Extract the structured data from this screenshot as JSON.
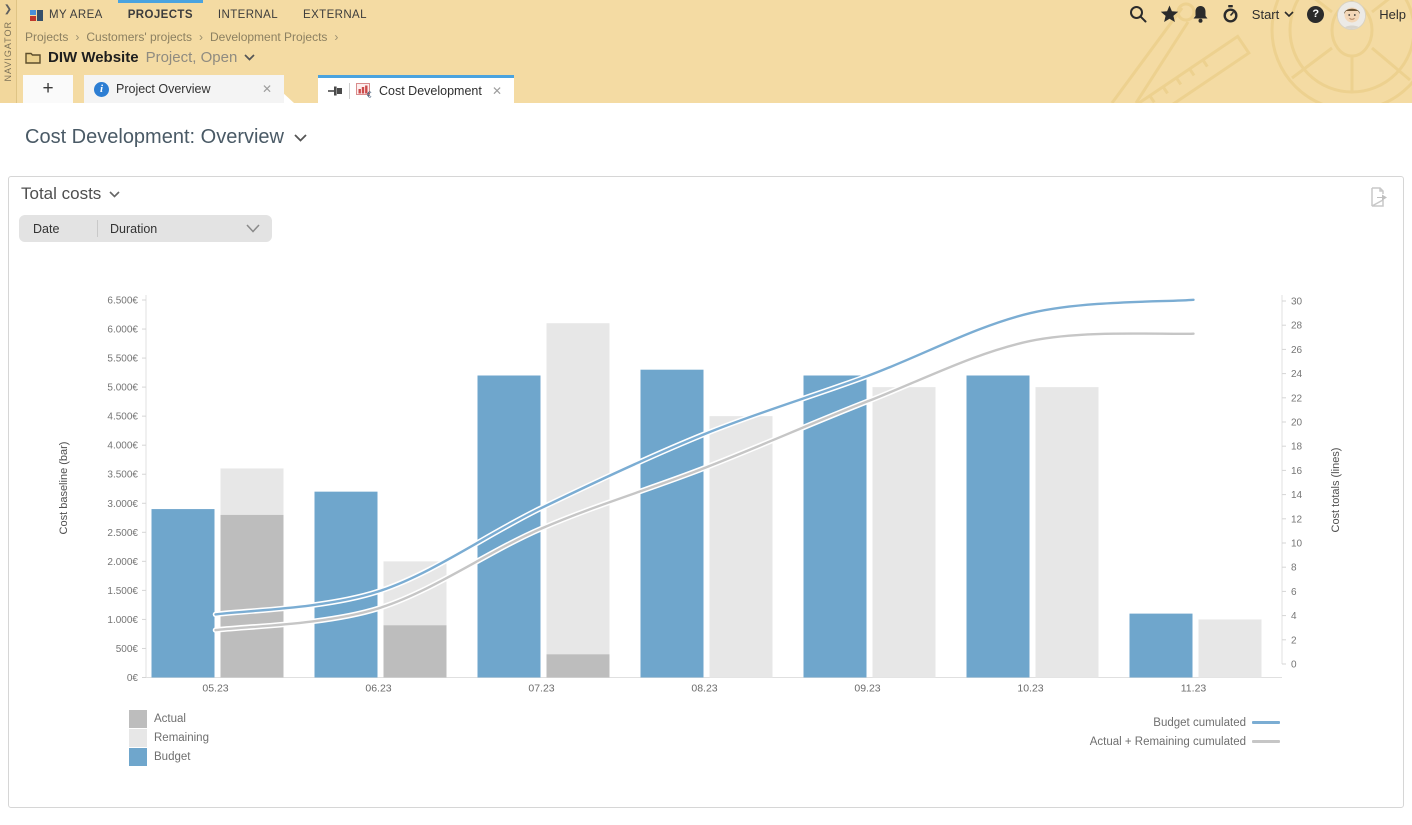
{
  "header": {
    "navigator_label": "NAVIGATOR",
    "nav_items": [
      {
        "label": "MY AREA"
      },
      {
        "label": "PROJECTS"
      },
      {
        "label": "INTERNAL"
      },
      {
        "label": "EXTERNAL"
      }
    ],
    "actions": {
      "start_label": "Start",
      "help_label": "Help",
      "help_badge": "?"
    },
    "breadcrumb": {
      "items": [
        "Projects",
        "Customers' projects",
        "Development Projects"
      ],
      "separator": "›"
    },
    "project": {
      "name": "DIW Website",
      "status": "Project, Open"
    },
    "tabs": {
      "plus_label": "+",
      "overview_label": "Project Overview",
      "active_label": "Cost Development",
      "close_glyph": "✕"
    }
  },
  "page": {
    "title": "Cost Development: Overview"
  },
  "panel": {
    "title": "Total costs",
    "filters": {
      "date_label": "Date",
      "duration_label": "Duration"
    }
  },
  "colors": {
    "header_bg": "#f4dba3",
    "accent_blue": "#4aa3df",
    "bar_budget": "#6fa6cc",
    "bar_actual": "#bdbdbd",
    "bar_remaining": "#e7e7e7",
    "line_budget_cum": "#7badd3",
    "line_actual_rem_cum": "#c6c6c6"
  },
  "chart_data": {
    "type": "bar",
    "subtype": "combo-bar-line-dual-axis",
    "categories": [
      "05.23",
      "06.23",
      "07.23",
      "08.23",
      "09.23",
      "10.23",
      "11.23"
    ],
    "bar_series": [
      {
        "name": "Actual",
        "color": "#bdbdbd",
        "values": [
          2800,
          900,
          400,
          0,
          0,
          0,
          0
        ]
      },
      {
        "name": "Remaining",
        "color": "#e7e7e7",
        "stacked_on": "Actual",
        "values": [
          800,
          1100,
          5700,
          4500,
          5000,
          5000,
          1000
        ]
      },
      {
        "name": "Budget",
        "color": "#6fa6cc",
        "values": [
          2900,
          3200,
          5200,
          5300,
          5200,
          5200,
          1100
        ]
      }
    ],
    "line_series": [
      {
        "name": "Budget cumulated",
        "color": "#7badd3",
        "axis": "right",
        "values": [
          4.1,
          6.0,
          12.9,
          19.0,
          23.8,
          29.0,
          30.1
        ]
      },
      {
        "name": "Actual + Remaining cumulated",
        "color": "#c6c6c6",
        "axis": "right",
        "values": [
          2.8,
          4.6,
          11.2,
          16.2,
          21.7,
          26.7,
          27.3
        ]
      }
    ],
    "left_axis": {
      "label": "Cost baseline (bar)",
      "min": 0,
      "max": 6500,
      "step": 500,
      "unit": "€",
      "tick_format": "de-thousands"
    },
    "right_axis": {
      "label": "Cost totals (lines)",
      "min": 0,
      "max": 30,
      "step": 2
    },
    "grid": false,
    "legend_position": "bottom"
  }
}
